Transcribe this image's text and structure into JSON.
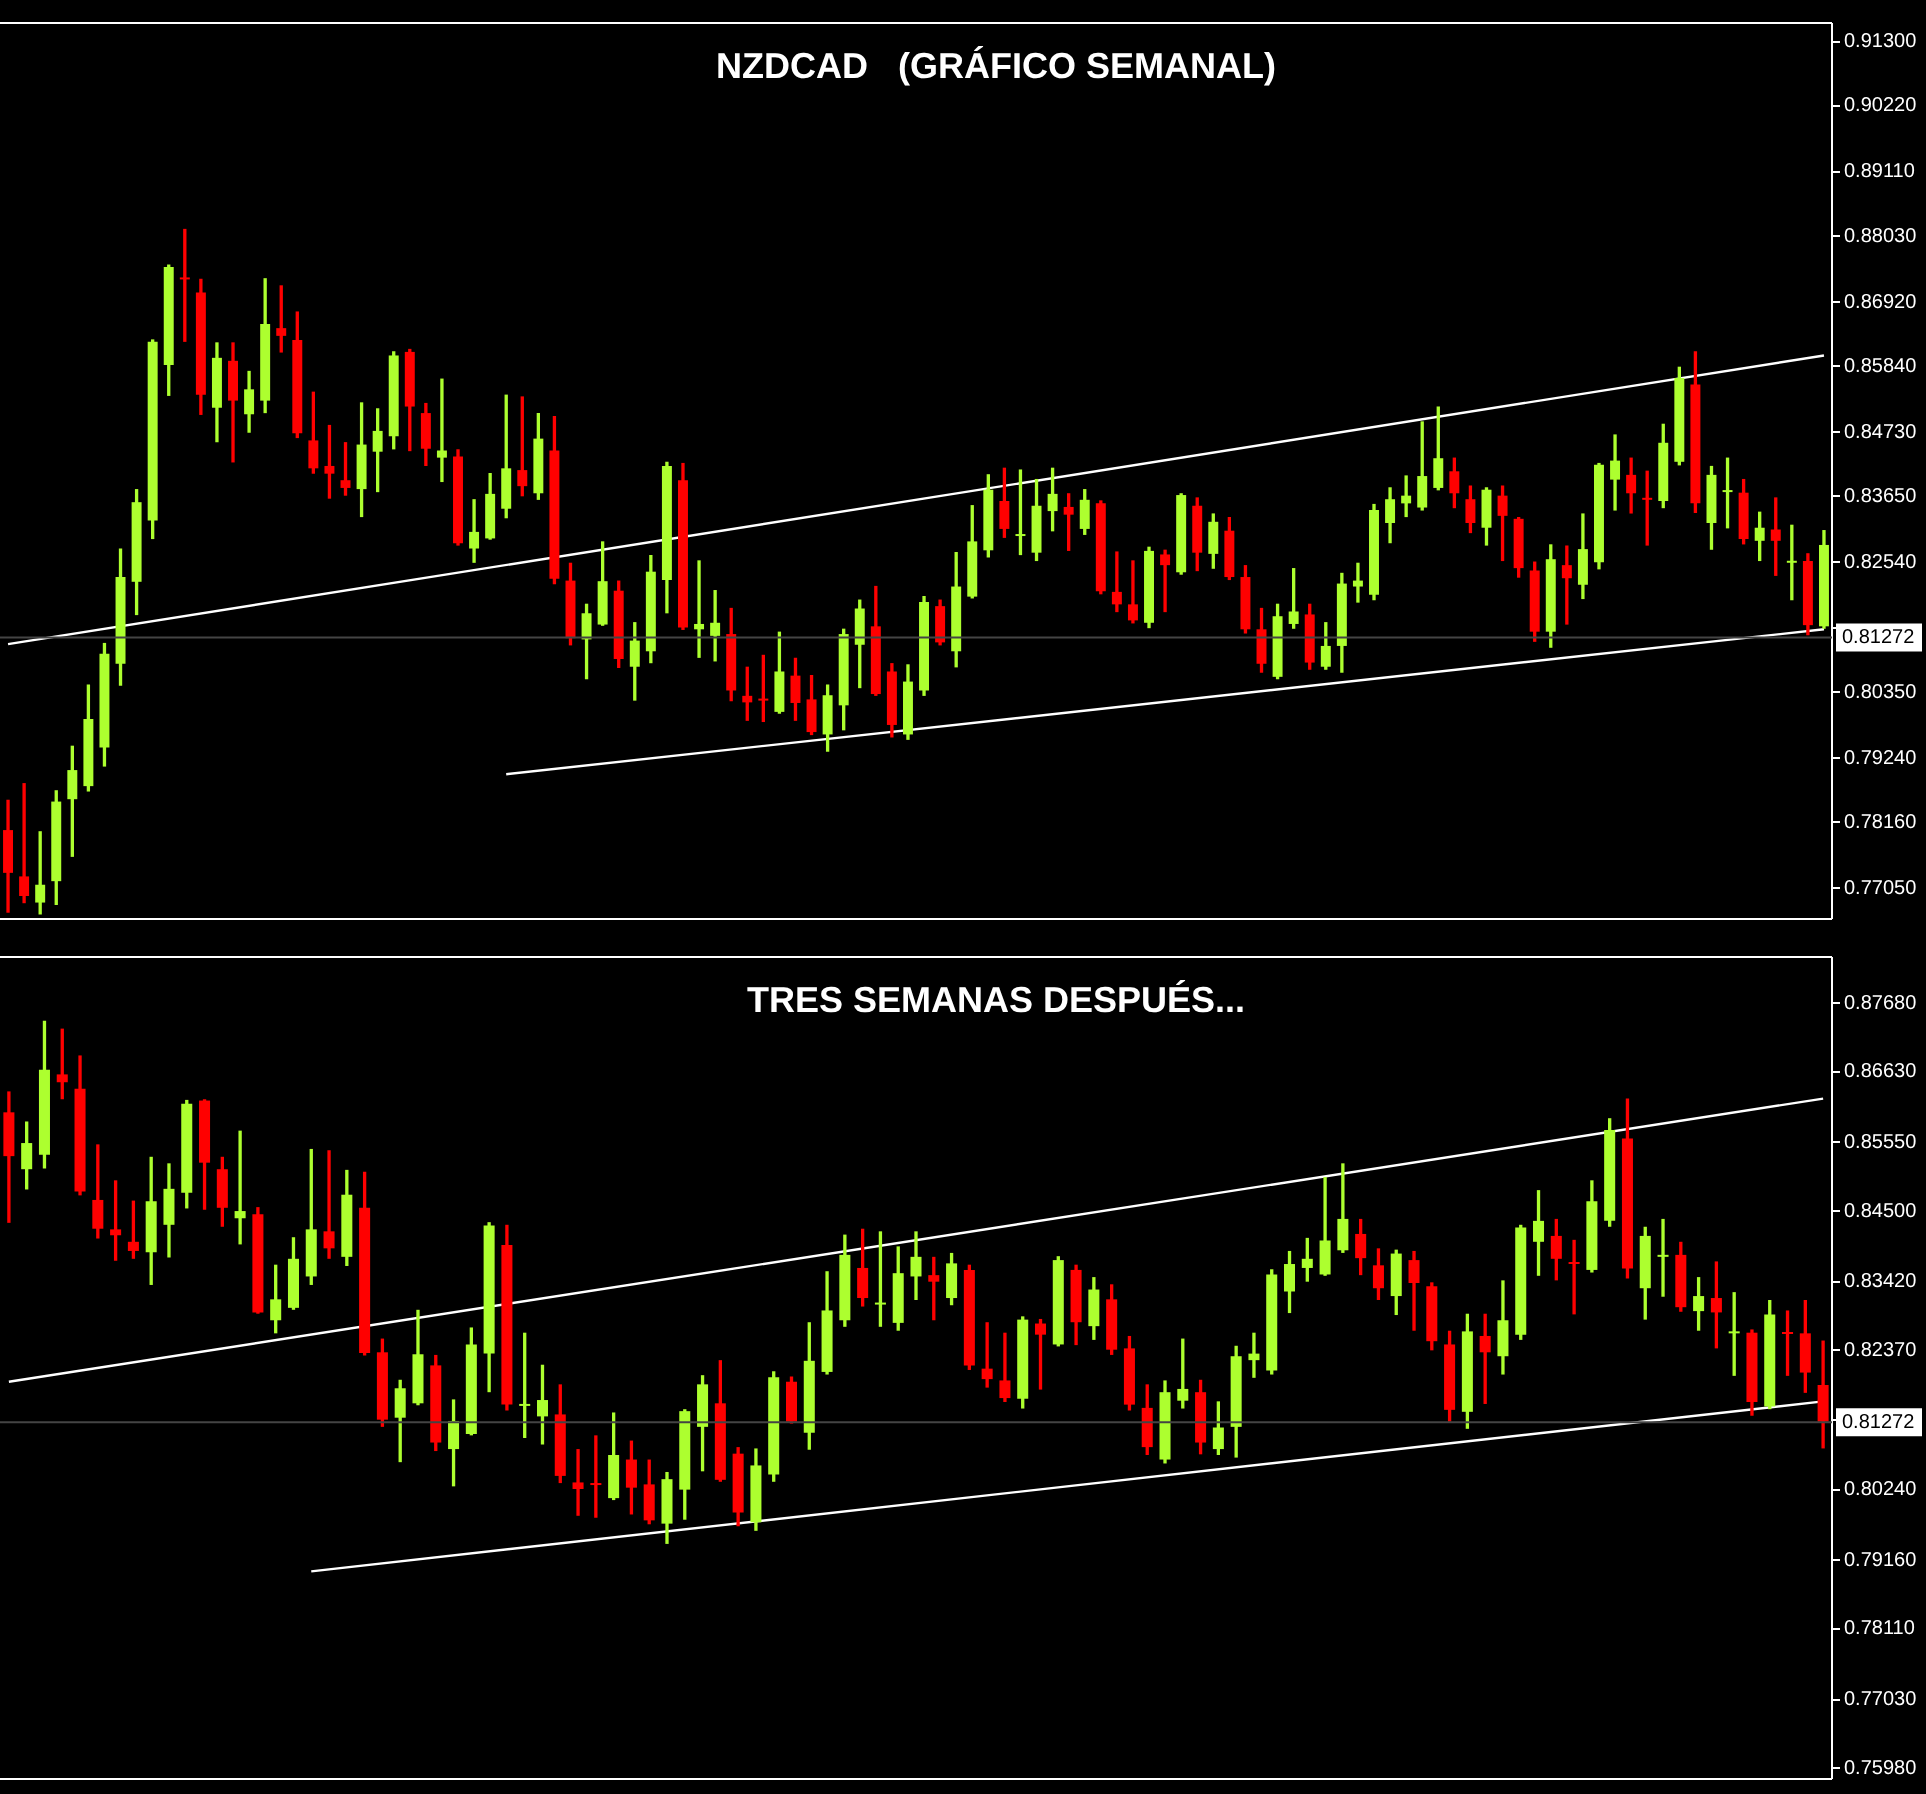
{
  "chart_data": [
    {
      "type": "candlestick",
      "title": "NZDCAD   (GRÁFICO SEMANAL)",
      "tick_labels": "y",
      "categories": [
        null,
        null,
        null,
        null,
        null,
        null,
        null,
        null,
        null,
        null,
        null,
        null,
        null,
        null,
        null,
        null,
        null,
        null,
        null,
        null,
        null,
        null,
        null,
        null,
        null,
        null,
        null,
        null,
        null,
        null,
        null,
        null,
        null,
        null,
        null,
        null,
        null,
        null,
        null,
        null,
        null,
        null,
        null,
        null,
        null,
        null,
        null,
        null,
        null,
        null,
        null,
        null,
        null,
        null,
        null,
        null,
        null,
        null,
        null,
        null,
        null,
        null,
        null,
        null,
        null,
        null,
        null,
        null,
        null,
        null,
        null,
        null,
        null,
        null,
        null,
        null,
        null,
        null,
        null,
        null,
        null,
        null,
        null,
        null,
        null,
        null,
        null,
        null,
        null,
        null,
        null,
        null,
        null,
        null,
        null,
        null,
        null,
        null,
        null,
        null,
        null,
        null,
        null,
        null,
        null,
        null,
        null,
        null,
        null,
        null,
        null,
        null,
        null,
        null
      ],
      "ohlc": [
        [
          0.7803,
          0.7853,
          0.7665,
          0.7731
        ],
        [
          0.7725,
          0.7881,
          0.7681,
          0.7692
        ],
        [
          0.7681,
          0.78,
          0.7662,
          0.7711
        ],
        [
          0.7717,
          0.7869,
          0.7678,
          0.7851
        ],
        [
          0.7855,
          0.7944,
          0.7759,
          0.7904
        ],
        [
          0.7877,
          0.8047,
          0.7869,
          0.799
        ],
        [
          0.7942,
          0.8117,
          0.7911,
          0.81
        ],
        [
          0.8083,
          0.8276,
          0.8047,
          0.8229
        ],
        [
          0.8221,
          0.8376,
          0.8166,
          0.8355
        ],
        [
          0.8324,
          0.8628,
          0.8294,
          0.8625
        ],
        [
          0.8586,
          0.8754,
          0.8535,
          0.8751
        ],
        [
          0.8731,
          0.8814,
          0.8626,
          0.873
        ],
        [
          0.8708,
          0.873,
          0.8503,
          0.8536
        ],
        [
          0.8514,
          0.8623,
          0.8457,
          0.8598
        ],
        [
          0.8593,
          0.8623,
          0.8423,
          0.8526
        ],
        [
          0.8503,
          0.8575,
          0.8473,
          0.8545
        ],
        [
          0.8526,
          0.8731,
          0.8506,
          0.8655
        ],
        [
          0.8648,
          0.8719,
          0.8608,
          0.8635
        ],
        [
          0.8628,
          0.8675,
          0.8464,
          0.8471
        ],
        [
          0.8459,
          0.854,
          0.8404,
          0.8412
        ],
        [
          0.8416,
          0.8484,
          0.8362,
          0.8403
        ],
        [
          0.8392,
          0.8455,
          0.8367,
          0.8379
        ],
        [
          0.8377,
          0.8522,
          0.8331,
          0.8452
        ],
        [
          0.844,
          0.8512,
          0.8373,
          0.8475
        ],
        [
          0.8466,
          0.8608,
          0.8445,
          0.8602
        ],
        [
          0.8608,
          0.8612,
          0.8442,
          0.8516
        ],
        [
          0.8505,
          0.8521,
          0.8417,
          0.8445
        ],
        [
          0.843,
          0.8562,
          0.839,
          0.8442
        ],
        [
          0.8432,
          0.8443,
          0.8283,
          0.8286
        ],
        [
          0.8277,
          0.8359,
          0.8254,
          0.8305
        ],
        [
          0.8294,
          0.8403,
          0.8293,
          0.8369
        ],
        [
          0.8344,
          0.8535,
          0.8329,
          0.8412
        ],
        [
          0.8409,
          0.8532,
          0.8366,
          0.8382
        ],
        [
          0.837,
          0.8504,
          0.836,
          0.8462
        ],
        [
          0.8442,
          0.8499,
          0.8218,
          0.8226
        ],
        [
          0.8223,
          0.8252,
          0.8115,
          0.8126
        ],
        [
          0.8124,
          0.8183,
          0.8058,
          0.8168
        ],
        [
          0.8149,
          0.8288,
          0.8148,
          0.8222
        ],
        [
          0.8206,
          0.8222,
          0.8077,
          0.8091
        ],
        [
          0.8078,
          0.8152,
          0.8022,
          0.8122
        ],
        [
          0.8104,
          0.8265,
          0.8085,
          0.8238
        ],
        [
          0.8224,
          0.8422,
          0.8169,
          0.8416
        ],
        [
          0.8392,
          0.842,
          0.8141,
          0.8144
        ],
        [
          0.8141,
          0.8256,
          0.8094,
          0.815
        ],
        [
          0.813,
          0.8206,
          0.8088,
          0.8152
        ],
        [
          0.8133,
          0.8176,
          0.8021,
          0.8038
        ],
        [
          0.8029,
          0.8077,
          0.7988,
          0.8018
        ],
        [
          0.8023,
          0.8097,
          0.7986,
          0.8021
        ],
        [
          0.8002,
          0.8136,
          0.8,
          0.807
        ],
        [
          0.8063,
          0.8092,
          0.7988,
          0.8017
        ],
        [
          0.8023,
          0.8063,
          0.7964,
          0.7968
        ],
        [
          0.7964,
          0.8047,
          0.7936,
          0.803
        ],
        [
          0.8013,
          0.8141,
          0.7972,
          0.8133
        ],
        [
          0.8115,
          0.819,
          0.8043,
          0.8176
        ],
        [
          0.8146,
          0.8213,
          0.803,
          0.8032
        ],
        [
          0.807,
          0.8083,
          0.796,
          0.798
        ],
        [
          0.7964,
          0.8081,
          0.7956,
          0.8053
        ],
        [
          0.8038,
          0.8196,
          0.803,
          0.8187
        ],
        [
          0.818,
          0.819,
          0.8115,
          0.8119
        ],
        [
          0.8104,
          0.827,
          0.8078,
          0.8213
        ],
        [
          0.8196,
          0.8349,
          0.8194,
          0.8289
        ],
        [
          0.8274,
          0.8401,
          0.8263,
          0.8376
        ],
        [
          0.8357,
          0.8412,
          0.8296,
          0.831
        ],
        [
          0.8298,
          0.8409,
          0.8267,
          0.83
        ],
        [
          0.827,
          0.8393,
          0.8257,
          0.8349
        ],
        [
          0.834,
          0.8412,
          0.8307,
          0.8369
        ],
        [
          0.8347,
          0.8369,
          0.8274,
          0.8334
        ],
        [
          0.831,
          0.8376,
          0.8301,
          0.8359
        ],
        [
          0.8353,
          0.8357,
          0.8201,
          0.8205
        ],
        [
          0.8204,
          0.8271,
          0.8171,
          0.8183
        ],
        [
          0.8183,
          0.8256,
          0.8152,
          0.8156
        ],
        [
          0.8152,
          0.8279,
          0.8144,
          0.8273
        ],
        [
          0.8267,
          0.8274,
          0.8171,
          0.8249
        ],
        [
          0.8237,
          0.8369,
          0.8234,
          0.8367
        ],
        [
          0.8349,
          0.8362,
          0.824,
          0.827
        ],
        [
          0.8268,
          0.8335,
          0.8244,
          0.8322
        ],
        [
          0.8307,
          0.8329,
          0.8225,
          0.8229
        ],
        [
          0.8229,
          0.8248,
          0.8135,
          0.8141
        ],
        [
          0.8141,
          0.8176,
          0.8069,
          0.8083
        ],
        [
          0.8061,
          0.8183,
          0.8058,
          0.8163
        ],
        [
          0.815,
          0.8243,
          0.8143,
          0.8171
        ],
        [
          0.8166,
          0.8183,
          0.8074,
          0.8085
        ],
        [
          0.8078,
          0.8152,
          0.8074,
          0.8113
        ],
        [
          0.8113,
          0.8235,
          0.8069,
          0.8218
        ],
        [
          0.8213,
          0.8252,
          0.8187,
          0.8223
        ],
        [
          0.8199,
          0.8351,
          0.8191,
          0.8342
        ],
        [
          0.832,
          0.8379,
          0.8287,
          0.836
        ],
        [
          0.8353,
          0.8399,
          0.8331,
          0.8366
        ],
        [
          0.8346,
          0.849,
          0.8342,
          0.8399
        ],
        [
          0.8379,
          0.8515,
          0.8376,
          0.8429
        ],
        [
          0.8407,
          0.8429,
          0.8346,
          0.837
        ],
        [
          0.836,
          0.8382,
          0.8304,
          0.832
        ],
        [
          0.8312,
          0.8379,
          0.8283,
          0.8376
        ],
        [
          0.8366,
          0.8382,
          0.8257,
          0.8332
        ],
        [
          0.8327,
          0.8329,
          0.8229,
          0.8244
        ],
        [
          0.824,
          0.8254,
          0.8121,
          0.8137
        ],
        [
          0.8137,
          0.8283,
          0.8111,
          0.8259
        ],
        [
          0.8249,
          0.8281,
          0.815,
          0.8227
        ],
        [
          0.8216,
          0.8335,
          0.8193,
          0.8276
        ],
        [
          0.8254,
          0.842,
          0.8243,
          0.8418
        ],
        [
          0.8393,
          0.8468,
          0.8342,
          0.8425
        ],
        [
          0.8401,
          0.8429,
          0.8337,
          0.837
        ],
        [
          0.8361,
          0.8407,
          0.8283,
          0.8359
        ],
        [
          0.8357,
          0.8486,
          0.8346,
          0.8455
        ],
        [
          0.8423,
          0.8582,
          0.8418,
          0.8564
        ],
        [
          0.8553,
          0.8608,
          0.8338,
          0.8353
        ],
        [
          0.832,
          0.8415,
          0.8276,
          0.8401
        ],
        [
          0.8372,
          0.8429,
          0.8312,
          0.8374
        ],
        [
          0.8371,
          0.8393,
          0.8285,
          0.8293
        ],
        [
          0.829,
          0.8338,
          0.8257,
          0.8312
        ],
        [
          0.8309,
          0.8362,
          0.8232,
          0.829
        ],
        [
          0.8253,
          0.8316,
          0.8191,
          0.8255
        ],
        [
          0.8256,
          0.8268,
          0.8132,
          0.8148
        ],
        [
          0.8146,
          0.8307,
          0.8143,
          0.8283
        ]
      ],
      "series": [
        {
          "type": "line",
          "color": "#ffffff",
          "values": [
            0.8116,
            null,
            null,
            null,
            null,
            null,
            null,
            null,
            null,
            null,
            null,
            null,
            null,
            null,
            null,
            null,
            null,
            null,
            null,
            null,
            null,
            null,
            null,
            null,
            null,
            null,
            null,
            null,
            null,
            null,
            null,
            null,
            null,
            null,
            null,
            null,
            null,
            null,
            null,
            null,
            null,
            null,
            null,
            null,
            null,
            null,
            null,
            null,
            null,
            null,
            null,
            null,
            null,
            null,
            null,
            null,
            null,
            null,
            null,
            null,
            null,
            null,
            null,
            null,
            null,
            null,
            null,
            null,
            null,
            null,
            null,
            null,
            null,
            null,
            null,
            null,
            null,
            null,
            null,
            null,
            null,
            null,
            null,
            null,
            null,
            null,
            null,
            null,
            null,
            null,
            null,
            null,
            null,
            null,
            null,
            null,
            null,
            null,
            null,
            null,
            null,
            null,
            null,
            null,
            null,
            null,
            null,
            null,
            null,
            null,
            null,
            null,
            null,
            0.8602
          ]
        },
        {
          "type": "line",
          "color": "#ffffff",
          "values": [
            null,
            null,
            null,
            null,
            null,
            null,
            null,
            null,
            null,
            null,
            null,
            null,
            null,
            null,
            null,
            null,
            null,
            null,
            null,
            null,
            null,
            null,
            null,
            null,
            null,
            null,
            null,
            null,
            null,
            null,
            null,
            0.7897,
            null,
            null,
            null,
            null,
            null,
            null,
            null,
            null,
            null,
            null,
            null,
            null,
            null,
            null,
            null,
            null,
            null,
            null,
            null,
            null,
            null,
            null,
            null,
            null,
            null,
            null,
            null,
            null,
            null,
            null,
            null,
            null,
            null,
            null,
            null,
            null,
            null,
            null,
            null,
            null,
            null,
            null,
            null,
            null,
            null,
            null,
            null,
            null,
            null,
            null,
            null,
            null,
            null,
            null,
            null,
            null,
            null,
            null,
            null,
            null,
            null,
            null,
            null,
            null,
            null,
            null,
            null,
            null,
            null,
            null,
            null,
            null,
            null,
            null,
            null,
            null,
            null,
            null,
            null,
            null,
            null,
            0.8141
          ]
        }
      ],
      "ref_lines": [
        {
          "axis": "y",
          "value": 0.81272,
          "label": "0.81272",
          "color": "#444444"
        }
      ],
      "ylim": [
        0.7655,
        0.916
      ],
      "yticks": [
        {
          "value": 0.913,
          "label": "0.91300"
        },
        {
          "value": 0.9022,
          "label": "0.90220"
        },
        {
          "value": 0.8911,
          "label": "0.89110"
        },
        {
          "value": 0.8803,
          "label": "0.88030"
        },
        {
          "value": 0.8692,
          "label": "0.86920"
        },
        {
          "value": 0.8584,
          "label": "0.85840"
        },
        {
          "value": 0.8473,
          "label": "0.84730"
        },
        {
          "value": 0.8365,
          "label": "0.83650"
        },
        {
          "value": 0.8254,
          "label": "0.82540"
        },
        {
          "value": 0.8143,
          "label": null
        },
        {
          "value": 0.8035,
          "label": "0.80350"
        },
        {
          "value": 0.7924,
          "label": "0.79240"
        },
        {
          "value": 0.7816,
          "label": "0.78160"
        },
        {
          "value": 0.7705,
          "label": "0.77050"
        }
      ]
    },
    {
      "type": "candlestick",
      "title": "TRES SEMANAS DESPUÉS...",
      "tick_labels": "y",
      "categories": [
        null,
        null,
        null,
        null,
        null,
        null,
        null,
        null,
        null,
        null,
        null,
        null,
        null,
        null,
        null,
        null,
        null,
        null,
        null,
        null,
        null,
        null,
        null,
        null,
        null,
        null,
        null,
        null,
        null,
        null,
        null,
        null,
        null,
        null,
        null,
        null,
        null,
        null,
        null,
        null,
        null,
        null,
        null,
        null,
        null,
        null,
        null,
        null,
        null,
        null,
        null,
        null,
        null,
        null,
        null,
        null,
        null,
        null,
        null,
        null,
        null,
        null,
        null,
        null,
        null,
        null,
        null,
        null,
        null,
        null,
        null,
        null,
        null,
        null,
        null,
        null,
        null,
        null,
        null,
        null,
        null,
        null,
        null,
        null,
        null,
        null,
        null,
        null,
        null,
        null,
        null,
        null,
        null,
        null,
        null,
        null,
        null,
        null,
        null,
        null,
        null,
        null,
        null
      ],
      "ohlc": [
        [
          0.8601,
          0.8632,
          0.8433,
          0.8534
        ],
        [
          0.8514,
          0.8586,
          0.8484,
          0.8554
        ],
        [
          0.8536,
          0.874,
          0.8516,
          0.8666
        ],
        [
          0.8659,
          0.8728,
          0.8622,
          0.8647
        ],
        [
          0.8637,
          0.8687,
          0.8475,
          0.848
        ],
        [
          0.8467,
          0.8551,
          0.8409,
          0.8423
        ],
        [
          0.8422,
          0.8496,
          0.8375,
          0.8413
        ],
        [
          0.8403,
          0.8465,
          0.8378,
          0.8389
        ],
        [
          0.8387,
          0.8532,
          0.8338,
          0.8465
        ],
        [
          0.8429,
          0.8522,
          0.838,
          0.8484
        ],
        [
          0.8478,
          0.8619,
          0.8455,
          0.8614
        ],
        [
          0.8619,
          0.862,
          0.8453,
          0.8524
        ],
        [
          0.8514,
          0.8532,
          0.8427,
          0.8455
        ],
        [
          0.8439,
          0.8572,
          0.84,
          0.845
        ],
        [
          0.8445,
          0.8455,
          0.8294,
          0.8295
        ],
        [
          0.8283,
          0.8367,
          0.8264,
          0.8315
        ],
        [
          0.8302,
          0.8409,
          0.83,
          0.8377
        ],
        [
          0.835,
          0.8544,
          0.8338,
          0.8422
        ],
        [
          0.8419,
          0.8542,
          0.8378,
          0.8393
        ],
        [
          0.838,
          0.8512,
          0.8367,
          0.8475
        ],
        [
          0.8455,
          0.8509,
          0.823,
          0.8233
        ],
        [
          0.8234,
          0.8254,
          0.8121,
          0.8131
        ],
        [
          0.8134,
          0.8191,
          0.8067,
          0.8179
        ],
        [
          0.8156,
          0.8298,
          0.8154,
          0.8231
        ],
        [
          0.8214,
          0.8229,
          0.8084,
          0.8096
        ],
        [
          0.8086,
          0.8161,
          0.803,
          0.8129
        ],
        [
          0.8109,
          0.8271,
          0.8108,
          0.8246
        ],
        [
          0.8232,
          0.8432,
          0.8174,
          0.8428
        ],
        [
          0.8398,
          0.8428,
          0.8146,
          0.8154
        ],
        [
          0.8152,
          0.8263,
          0.8104,
          0.8154
        ],
        [
          0.8136,
          0.8214,
          0.8094,
          0.8161
        ],
        [
          0.8139,
          0.8184,
          0.8035,
          0.8045
        ],
        [
          0.8035,
          0.8085,
          0.7985,
          0.8025
        ],
        [
          0.8033,
          0.8106,
          0.7982,
          0.8031
        ],
        [
          0.8011,
          0.8141,
          0.8009,
          0.8077
        ],
        [
          0.807,
          0.8098,
          0.7987,
          0.8027
        ],
        [
          0.8032,
          0.8069,
          0.7972,
          0.7977
        ],
        [
          0.7972,
          0.805,
          0.7942,
          0.804
        ],
        [
          0.8024,
          0.8146,
          0.7979,
          0.8144
        ],
        [
          0.812,
          0.8198,
          0.8053,
          0.8185
        ],
        [
          0.8156,
          0.8221,
          0.8037,
          0.8039
        ],
        [
          0.8079,
          0.8088,
          0.7969,
          0.7989
        ],
        [
          0.7974,
          0.8086,
          0.7962,
          0.8061
        ],
        [
          0.8047,
          0.8204,
          0.8037,
          0.8196
        ],
        [
          0.8189,
          0.8196,
          0.8126,
          0.8128
        ],
        [
          0.8111,
          0.8279,
          0.8086,
          0.8221
        ],
        [
          0.8204,
          0.8357,
          0.8201,
          0.8298
        ],
        [
          0.8283,
          0.8413,
          0.8274,
          0.8383
        ],
        [
          0.8363,
          0.8422,
          0.8305,
          0.8317
        ],
        [
          0.8307,
          0.8418,
          0.8274,
          0.8309
        ],
        [
          0.8279,
          0.8395,
          0.8268,
          0.8355
        ],
        [
          0.835,
          0.8418,
          0.8315,
          0.838
        ],
        [
          0.8352,
          0.8379,
          0.8284,
          0.8342
        ],
        [
          0.8317,
          0.8385,
          0.8307,
          0.837
        ],
        [
          0.836,
          0.8367,
          0.8208,
          0.8214
        ],
        [
          0.8209,
          0.8279,
          0.8181,
          0.8193
        ],
        [
          0.8191,
          0.8263,
          0.8159,
          0.8164
        ],
        [
          0.8163,
          0.8288,
          0.8149,
          0.8284
        ],
        [
          0.8278,
          0.8284,
          0.8178,
          0.8261
        ],
        [
          0.8246,
          0.838,
          0.8244,
          0.8375
        ],
        [
          0.836,
          0.8367,
          0.8246,
          0.828
        ],
        [
          0.8274,
          0.8348,
          0.8254,
          0.833
        ],
        [
          0.8315,
          0.8337,
          0.8231,
          0.8238
        ],
        [
          0.824,
          0.8258,
          0.8146,
          0.8154
        ],
        [
          0.8149,
          0.8184,
          0.8078,
          0.8089
        ],
        [
          0.807,
          0.819,
          0.8065,
          0.8173
        ],
        [
          0.816,
          0.8254,
          0.8149,
          0.8178
        ],
        [
          0.8173,
          0.8191,
          0.8079,
          0.8096
        ],
        [
          0.8086,
          0.8158,
          0.8078,
          0.8119
        ],
        [
          0.812,
          0.8243,
          0.8074,
          0.8228
        ],
        [
          0.8222,
          0.8263,
          0.8196,
          0.8232
        ],
        [
          0.8206,
          0.836,
          0.8201,
          0.8353
        ],
        [
          0.8327,
          0.8388,
          0.8295,
          0.8369
        ],
        [
          0.8363,
          0.8408,
          0.8343,
          0.8377
        ],
        [
          0.8353,
          0.8501,
          0.8352,
          0.8405
        ],
        [
          0.839,
          0.8522,
          0.8387,
          0.8438
        ],
        [
          0.8415,
          0.8437,
          0.8353,
          0.8378
        ],
        [
          0.8367,
          0.8392,
          0.8315,
          0.8332
        ],
        [
          0.832,
          0.839,
          0.8292,
          0.8385
        ],
        [
          0.8375,
          0.8388,
          0.8268,
          0.834
        ],
        [
          0.8335,
          0.834,
          0.8238,
          0.8251
        ],
        [
          0.8246,
          0.8266,
          0.8129,
          0.8146
        ],
        [
          0.8143,
          0.8292,
          0.8118,
          0.8266
        ],
        [
          0.8259,
          0.8292,
          0.8156,
          0.8234
        ],
        [
          0.8228,
          0.8343,
          0.8201,
          0.8283
        ],
        [
          0.8261,
          0.8428,
          0.8254,
          0.8425
        ],
        [
          0.8403,
          0.8481,
          0.8352,
          0.8435
        ],
        [
          0.8412,
          0.8437,
          0.8345,
          0.8377
        ],
        [
          0.8371,
          0.8405,
          0.8293,
          0.8369
        ],
        [
          0.836,
          0.8496,
          0.8357,
          0.8465
        ],
        [
          0.8435,
          0.8591,
          0.8427,
          0.8574
        ],
        [
          0.8561,
          0.8621,
          0.8348,
          0.8362
        ],
        [
          0.8332,
          0.8425,
          0.8285,
          0.8412
        ],
        [
          0.838,
          0.8437,
          0.832,
          0.8382
        ],
        [
          0.8383,
          0.8402,
          0.8297,
          0.8303
        ],
        [
          0.8297,
          0.8348,
          0.8268,
          0.832
        ],
        [
          0.8317,
          0.8372,
          0.8241,
          0.8295
        ],
        [
          0.8263,
          0.8325,
          0.8199,
          0.8265
        ],
        [
          0.8264,
          0.8268,
          0.8138,
          0.8158
        ],
        [
          0.8151,
          0.8313,
          0.8148,
          0.8292
        ],
        [
          0.8264,
          0.8297,
          0.8199,
          0.8262
        ],
        [
          0.8263,
          0.8313,
          0.8173,
          0.8203
        ],
        [
          0.8184,
          0.8251,
          0.8088,
          0.8128
        ]
      ],
      "series": [
        {
          "type": "line",
          "color": "#ffffff",
          "values": [
            0.8189,
            null,
            null,
            null,
            null,
            null,
            null,
            null,
            null,
            null,
            null,
            null,
            null,
            null,
            null,
            null,
            null,
            null,
            null,
            null,
            null,
            null,
            null,
            null,
            null,
            null,
            null,
            null,
            null,
            null,
            null,
            null,
            null,
            null,
            null,
            null,
            null,
            null,
            null,
            null,
            null,
            null,
            null,
            null,
            null,
            null,
            null,
            null,
            null,
            null,
            null,
            null,
            null,
            null,
            null,
            null,
            null,
            null,
            null,
            null,
            null,
            null,
            null,
            null,
            null,
            null,
            null,
            null,
            null,
            null,
            null,
            null,
            null,
            null,
            null,
            null,
            null,
            null,
            null,
            null,
            null,
            null,
            null,
            null,
            null,
            null,
            null,
            null,
            null,
            null,
            null,
            null,
            null,
            null,
            null,
            null,
            null,
            null,
            null,
            null,
            null,
            null,
            0.8622
          ]
        },
        {
          "type": "line",
          "color": "#ffffff",
          "values": [
            null,
            null,
            null,
            null,
            null,
            null,
            null,
            null,
            null,
            null,
            null,
            null,
            null,
            null,
            null,
            null,
            null,
            0.7899,
            null,
            null,
            null,
            null,
            null,
            null,
            null,
            null,
            null,
            null,
            null,
            null,
            null,
            null,
            null,
            null,
            null,
            null,
            null,
            null,
            null,
            null,
            null,
            null,
            null,
            null,
            null,
            null,
            null,
            null,
            null,
            null,
            null,
            null,
            null,
            null,
            null,
            null,
            null,
            null,
            null,
            null,
            null,
            null,
            null,
            null,
            null,
            null,
            null,
            null,
            null,
            null,
            null,
            null,
            null,
            null,
            null,
            null,
            null,
            null,
            null,
            null,
            null,
            null,
            null,
            null,
            null,
            null,
            null,
            null,
            null,
            null,
            null,
            null,
            null,
            null,
            null,
            null,
            null,
            null,
            null,
            null,
            null,
            null,
            0.8159
          ]
        }
      ],
      "ref_lines": [
        {
          "axis": "y",
          "value": 0.81272,
          "label": "0.81272",
          "color": "#444444"
        }
      ],
      "ylim": [
        0.7583,
        0.8837
      ],
      "yticks": [
        {
          "value": 0.8768,
          "label": "0.87680"
        },
        {
          "value": 0.8663,
          "label": "0.86630"
        },
        {
          "value": 0.8555,
          "label": "0.85550"
        },
        {
          "value": 0.845,
          "label": "0.84500"
        },
        {
          "value": 0.8342,
          "label": "0.83420"
        },
        {
          "value": 0.8237,
          "label": "0.82370"
        },
        {
          "value": 0.813,
          "label": null
        },
        {
          "value": 0.8024,
          "label": "0.80240"
        },
        {
          "value": 0.7916,
          "label": "0.79160"
        },
        {
          "value": 0.7811,
          "label": "0.78110"
        },
        {
          "value": 0.7703,
          "label": "0.77030"
        },
        {
          "value": 0.7598,
          "label": "0.75980"
        }
      ]
    }
  ]
}
